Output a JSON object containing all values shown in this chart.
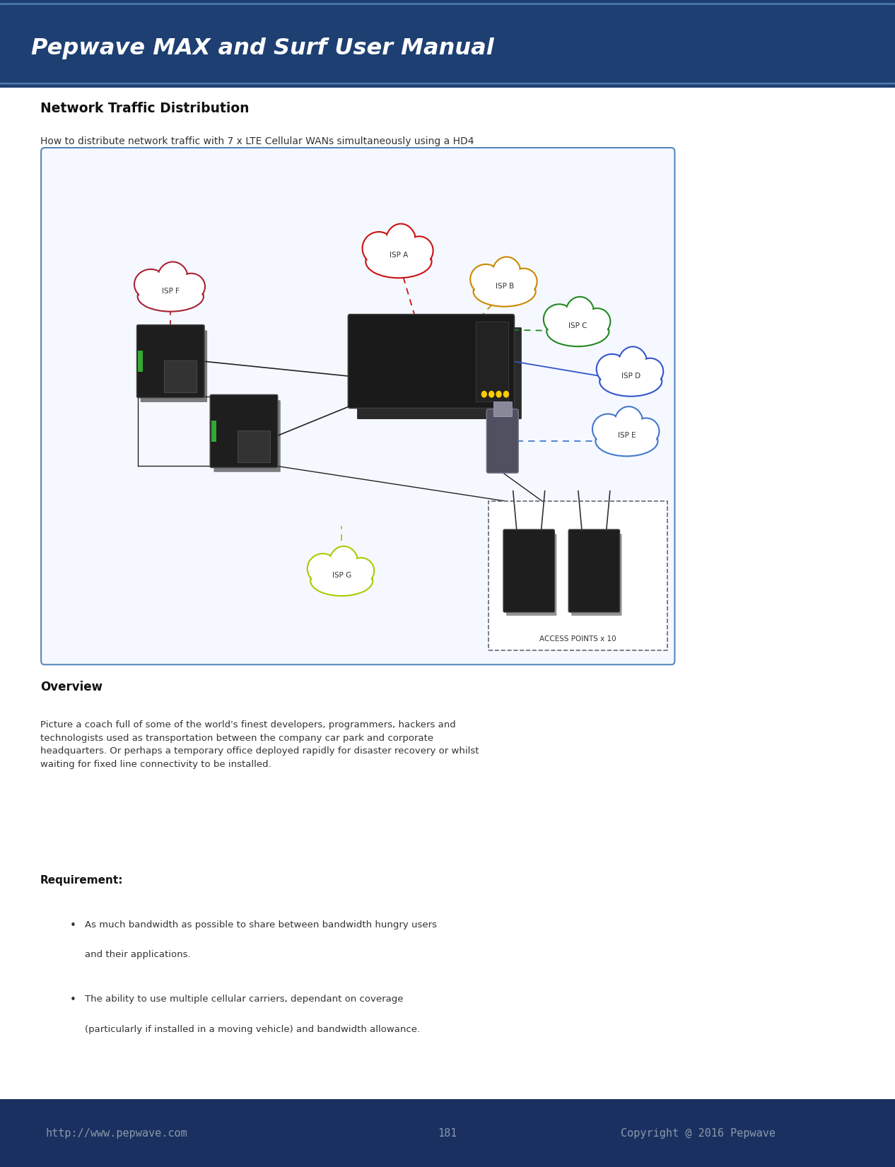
{
  "title_text": "Pepwave MAX and Surf User Manual",
  "body_bg_color": "#ffffff",
  "section_title": "Network Traffic Distribution",
  "subtitle": "How to distribute network traffic with 7 x LTE Cellular WANs simultaneously using a HD4",
  "overview_title": "Overview",
  "overview_text": "Picture a coach full of some of the world's finest developers, programmers, hackers and\ntechnologists used as transportation between the company car park and corporate\nheadquarters. Or perhaps a temporary office deployed rapidly for disaster recovery or whilst\nwaiting for fixed line connectivity to be installed.",
  "requirement_title": "Requirement:",
  "bullet1_line1": "As much bandwidth as possible to share between bandwidth hungry users",
  "bullet1_line2": "and their applications.",
  "bullet2_line1": "The ability to use multiple cellular carriers, dependant on coverage",
  "bullet2_line2": "(particularly if installed in a moving vehicle) and bandwidth allowance.",
  "footer_url": "http://www.pepwave.com",
  "footer_page": "181",
  "footer_copyright": "Copyright @ 2016 Pepwave",
  "footer_text_color": "#8899aa",
  "header_color": "#1e3f72",
  "header_edge_color": "#4a7aaa",
  "footer_color": "#1a3060",
  "diagram_border_color": "#5588bb",
  "diagram_bg_color": "#f5f8ff",
  "isp_labels": [
    "ISP A",
    "ISP B",
    "ISP C",
    "ISP D",
    "ISP E",
    "ISP F",
    "ISP G"
  ],
  "isp_colors": [
    "#cc1111",
    "#cc8800",
    "#228822",
    "#3355cc",
    "#4477cc",
    "#aa2233",
    "#aacc00"
  ],
  "access_points_label": "ACCESS POINTS x 10"
}
